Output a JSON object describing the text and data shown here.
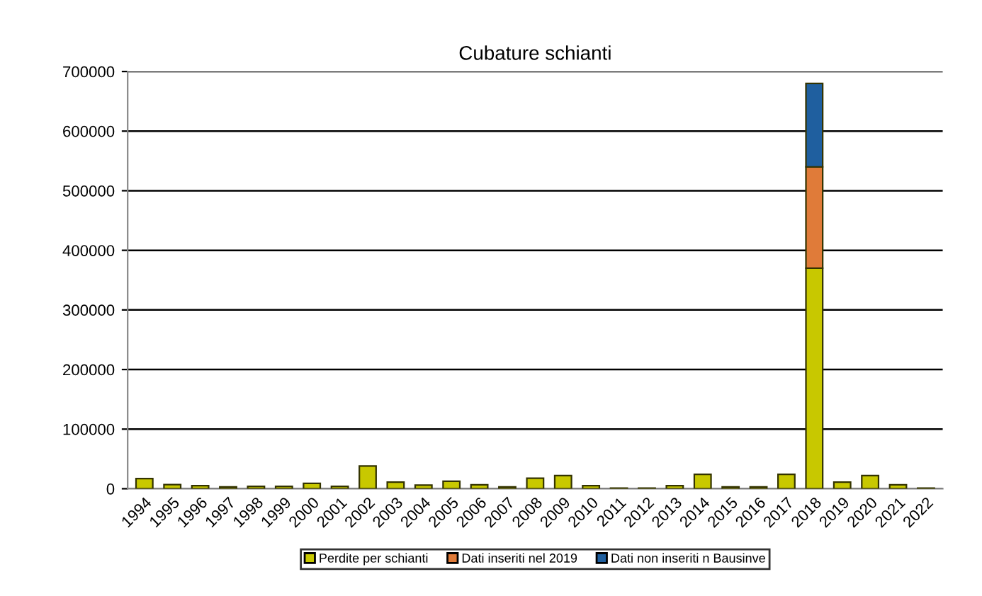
{
  "chart_data": {
    "type": "bar",
    "title": "Cubature schianti",
    "stacked": true,
    "categories": [
      "1994",
      "1995",
      "1996",
      "1997",
      "1998",
      "1999",
      "2000",
      "2001",
      "2002",
      "2003",
      "2004",
      "2005",
      "2006",
      "2007",
      "2008",
      "2009",
      "2010",
      "2011",
      "2012",
      "2013",
      "2014",
      "2015",
      "2016",
      "2017",
      "2018",
      "2019",
      "2020",
      "2021",
      "2022"
    ],
    "series": [
      {
        "name": "Perdite per schianti",
        "color": "#c8c800",
        "values": [
          17000,
          7000,
          5000,
          3000,
          4000,
          4000,
          9000,
          4000,
          38000,
          11000,
          6000,
          12500,
          6500,
          3000,
          17500,
          22000,
          5000,
          1000,
          1000,
          5000,
          24000,
          3000,
          3000,
          24000,
          370000,
          11000,
          22000,
          6500,
          1000
        ]
      },
      {
        "name": "Dati inseriti nel 2019",
        "color": "#e07b39",
        "values": [
          null,
          null,
          null,
          null,
          null,
          null,
          null,
          null,
          null,
          null,
          null,
          null,
          null,
          null,
          null,
          null,
          null,
          null,
          null,
          null,
          null,
          null,
          null,
          null,
          170000,
          null,
          null,
          null,
          null
        ]
      },
      {
        "name": "Dati non inseriti n Bausinve",
        "color": "#1f5f9f",
        "values": [
          null,
          null,
          null,
          null,
          null,
          null,
          null,
          null,
          null,
          null,
          null,
          null,
          null,
          null,
          null,
          null,
          null,
          null,
          null,
          null,
          null,
          null,
          null,
          null,
          140000,
          null,
          null,
          null,
          null
        ]
      }
    ],
    "ylim": [
      0,
      700000
    ],
    "yticks": [
      0,
      100000,
      200000,
      300000,
      400000,
      500000,
      600000,
      700000
    ],
    "grid": "y",
    "legend": "bottom"
  }
}
